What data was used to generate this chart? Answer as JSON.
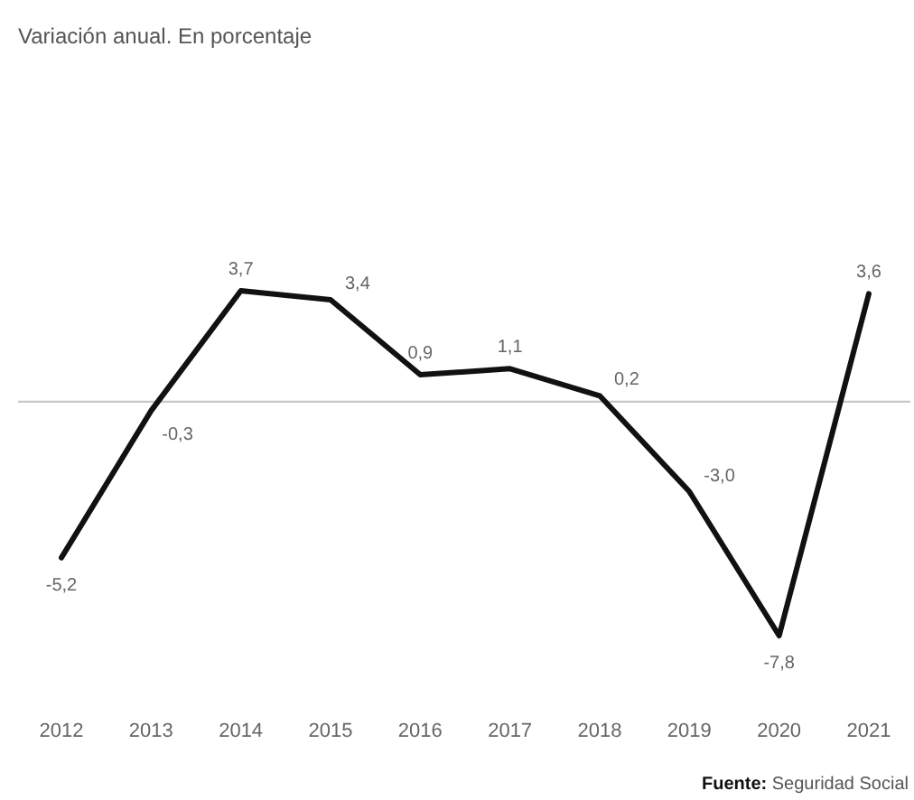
{
  "chart_data": {
    "type": "line",
    "subtitle": "Variación anual. En porcentaje",
    "categories": [
      "2012",
      "2013",
      "2014",
      "2015",
      "2016",
      "2017",
      "2018",
      "2019",
      "2020",
      "2021"
    ],
    "values": [
      -5.2,
      -0.3,
      3.7,
      3.4,
      0.9,
      1.1,
      0.2,
      -3.0,
      -7.8,
      3.6
    ],
    "value_labels": [
      "-5,2",
      "-0,3",
      "3,7",
      "3,4",
      "0,9",
      "1,1",
      "0,2",
      "-3,0",
      "-7,8",
      "3,6"
    ],
    "color": "#111111",
    "line_style": "solid",
    "ref_lines": [
      {
        "axis": "y",
        "value": 0,
        "color": "#c8c8c8"
      }
    ],
    "annotations": [
      "Fuente: Seguridad Social"
    ]
  }
}
